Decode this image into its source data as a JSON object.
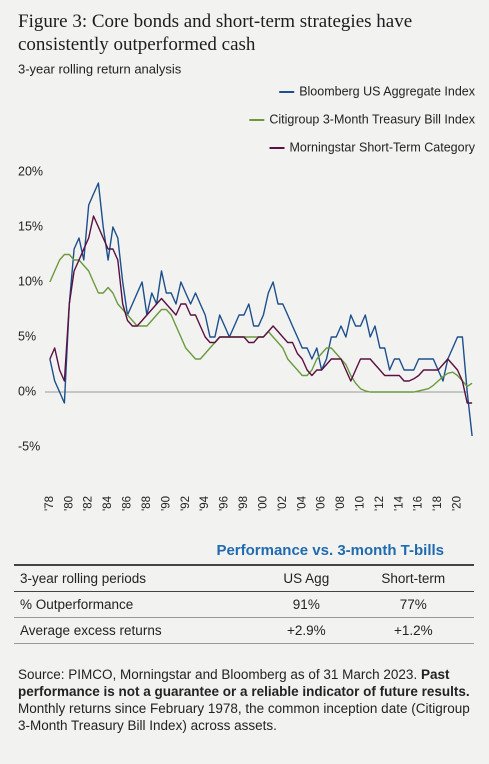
{
  "title": "Figure 3: Core bonds and short-term strategies have consistently outperformed cash",
  "chart_data": {
    "type": "line",
    "subtitle": "3-year rolling return analysis",
    "x": [
      1978,
      1978.5,
      1979,
      1979.5,
      1980,
      1980.5,
      1981,
      1981.5,
      1982,
      1982.5,
      1983,
      1983.5,
      1984,
      1984.5,
      1985,
      1985.5,
      1986,
      1986.5,
      1987,
      1987.5,
      1988,
      1988.5,
      1989,
      1989.5,
      1990,
      1990.5,
      1991,
      1991.5,
      1992,
      1992.5,
      1993,
      1993.5,
      1994,
      1994.5,
      1995,
      1995.5,
      1996,
      1996.5,
      1997,
      1997.5,
      1998,
      1998.5,
      1999,
      1999.5,
      2000,
      2000.5,
      2001,
      2001.5,
      2002,
      2002.5,
      2003,
      2003.5,
      2004,
      2004.5,
      2005,
      2005.5,
      2006,
      2006.5,
      2007,
      2007.5,
      2008,
      2008.5,
      2009,
      2009.5,
      2010,
      2010.5,
      2011,
      2011.5,
      2012,
      2012.5,
      2013,
      2013.5,
      2014,
      2014.5,
      2015,
      2015.5,
      2016,
      2016.5,
      2017,
      2017.5,
      2018,
      2018.5,
      2019,
      2019.5,
      2020,
      2020.5,
      2021,
      2021.5
    ],
    "series": [
      {
        "name": "Bloomberg US Aggregate Index",
        "color": "#1c4f8c",
        "values": [
          3,
          1,
          0,
          -1,
          8,
          13,
          14,
          12,
          17,
          18,
          19,
          15,
          12,
          15,
          14,
          10,
          7,
          8,
          9,
          10,
          7,
          9,
          8,
          11,
          9,
          9,
          8,
          10,
          9,
          8,
          9,
          8,
          7,
          5,
          5,
          7,
          6,
          5,
          6,
          7,
          7,
          8,
          6,
          6,
          7,
          9,
          10,
          8,
          8,
          7,
          6,
          5,
          4,
          4,
          3,
          4,
          2,
          3,
          5,
          5,
          6,
          5,
          7,
          6,
          6,
          7,
          5,
          6,
          4,
          4,
          2,
          3,
          3,
          2,
          2,
          2,
          3,
          3,
          3,
          3,
          2,
          1,
          3,
          4,
          5,
          5,
          0,
          -4
        ]
      },
      {
        "name": "Citigroup 3-Month Treasury Bill Index",
        "color": "#6a9a3c",
        "values": [
          10,
          11,
          12,
          12.5,
          12.5,
          12,
          12,
          11.5,
          11,
          10,
          9,
          9,
          9.5,
          9,
          8,
          7.5,
          7,
          6.5,
          6,
          6,
          6,
          6.5,
          7,
          7.5,
          7.5,
          7,
          6,
          5,
          4,
          3.5,
          3,
          3,
          3.5,
          4,
          4.5,
          5,
          5,
          5,
          5,
          5,
          5,
          5,
          5,
          5,
          5,
          5.5,
          5,
          4.5,
          4,
          3,
          2.5,
          2,
          1.5,
          1.5,
          2,
          3,
          3.5,
          4,
          4,
          3.5,
          3,
          2.5,
          1.5,
          0.8,
          0.3,
          0.1,
          0,
          0,
          0,
          0,
          0,
          0,
          0,
          0,
          0,
          0,
          0.1,
          0.2,
          0.3,
          0.6,
          1,
          1.4,
          1.7,
          1.8,
          1.5,
          1,
          0.5,
          0.8
        ]
      },
      {
        "name": "Morningstar Short-Term Category",
        "color": "#5a1040",
        "values": [
          3,
          4,
          2,
          1,
          8,
          11,
          12,
          13,
          14,
          16,
          15,
          14,
          13,
          13,
          12,
          8,
          6.5,
          6,
          6,
          6.5,
          7,
          7.5,
          8,
          8.5,
          8,
          7.5,
          7,
          8,
          8,
          7,
          7,
          6,
          5,
          4.5,
          4.5,
          5,
          5,
          5,
          5,
          5,
          5,
          4.5,
          4.5,
          5,
          5,
          5.5,
          6,
          5.5,
          5,
          4.5,
          4.5,
          3.5,
          3,
          2,
          1.5,
          2,
          2,
          2.5,
          3,
          3,
          3,
          2,
          1,
          2,
          3,
          3,
          3,
          2.5,
          2,
          1.5,
          1.5,
          1.5,
          1.5,
          1,
          1,
          1.2,
          1.5,
          2,
          2,
          2,
          2,
          2.5,
          3,
          2.5,
          2,
          1,
          -1,
          -1
        ]
      }
    ],
    "xlim": [
      1977.5,
      2021.8
    ],
    "xticks": [
      {
        "value": 1978,
        "label": "'78"
      },
      {
        "value": 1980,
        "label": "'80"
      },
      {
        "value": 1982,
        "label": "'82"
      },
      {
        "value": 1984,
        "label": "'84"
      },
      {
        "value": 1986,
        "label": "'86"
      },
      {
        "value": 1988,
        "label": "'88"
      },
      {
        "value": 1990,
        "label": "'90"
      },
      {
        "value": 1992,
        "label": "'92"
      },
      {
        "value": 1994,
        "label": "'94"
      },
      {
        "value": 1996,
        "label": "'96"
      },
      {
        "value": 1998,
        "label": "'98"
      },
      {
        "value": 2000,
        "label": "'00"
      },
      {
        "value": 2002,
        "label": "'02"
      },
      {
        "value": 2004,
        "label": "'04"
      },
      {
        "value": 2006,
        "label": "'06"
      },
      {
        "value": 2008,
        "label": "'08"
      },
      {
        "value": 2010,
        "label": "'10"
      },
      {
        "value": 2012,
        "label": "'12"
      },
      {
        "value": 2014,
        "label": "'14"
      },
      {
        "value": 2016,
        "label": "'16"
      },
      {
        "value": 2018,
        "label": "'18"
      },
      {
        "value": 2020,
        "label": "'20"
      }
    ],
    "ylim": [
      -6,
      21
    ],
    "yticks": [
      {
        "value": 20,
        "label": "20%"
      },
      {
        "value": 15,
        "label": "15%"
      },
      {
        "value": 10,
        "label": "10%"
      },
      {
        "value": 5,
        "label": "5%"
      },
      {
        "value": 0,
        "label": "0%"
      },
      {
        "value": -5,
        "label": "-5%"
      }
    ],
    "grid": false,
    "legend": "upper right"
  },
  "table": {
    "title": "Performance vs. 3-month T-bills",
    "header": [
      "3-year rolling periods",
      "US Agg",
      "Short-term"
    ],
    "rows": [
      [
        "% Outperformance",
        "91%",
        "77%"
      ],
      [
        "Average excess returns",
        "+2.9%",
        "+1.2%"
      ]
    ]
  },
  "source": {
    "text": "Source: PIMCO, Morningstar and Bloomberg as of 31 March 2023.",
    "bold": "Past performance is not a guarantee or a reliable indicator of future results.",
    "note": "Monthly returns since February 1978, the common inception date (Citigroup 3-Month Treasury Bill Index) across assets."
  }
}
